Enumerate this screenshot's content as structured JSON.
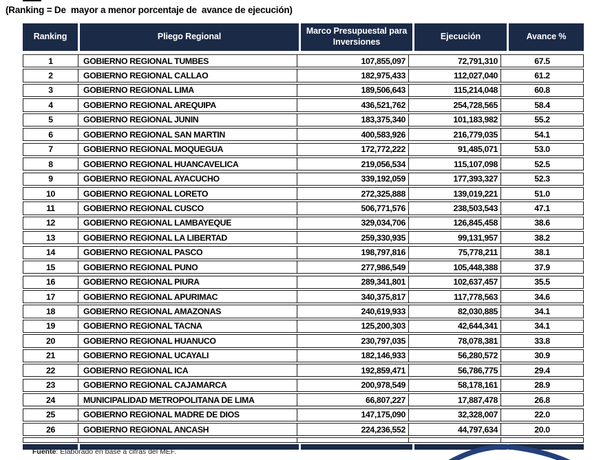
{
  "title": "(Ranking = De  mayor a menor porcentaje de  avance de ejecución)",
  "table": {
    "columns": [
      "Ranking",
      "Pliego Regional",
      "Marco Presupuestal para Inversiones",
      "Ejecución",
      "Avance %"
    ],
    "rows": [
      {
        "ranking": "1",
        "pliego": "GOBIERNO REGIONAL TUMBES",
        "marco": "107,855,097",
        "ejecucion": "72,791,310",
        "avance": "67.5"
      },
      {
        "ranking": "2",
        "pliego": "GOBIERNO REGIONAL CALLAO",
        "marco": "182,975,433",
        "ejecucion": "112,027,040",
        "avance": "61.2"
      },
      {
        "ranking": "3",
        "pliego": "GOBIERNO REGIONAL LIMA",
        "marco": "189,506,643",
        "ejecucion": "115,214,048",
        "avance": "60.8"
      },
      {
        "ranking": "4",
        "pliego": "GOBIERNO REGIONAL AREQUIPA",
        "marco": "436,521,762",
        "ejecucion": "254,728,565",
        "avance": "58.4"
      },
      {
        "ranking": "5",
        "pliego": "GOBIERNO REGIONAL JUNIN",
        "marco": "183,375,340",
        "ejecucion": "101,183,982",
        "avance": "55.2"
      },
      {
        "ranking": "6",
        "pliego": "GOBIERNO REGIONAL SAN MARTIN",
        "marco": "400,583,926",
        "ejecucion": "216,779,035",
        "avance": "54.1"
      },
      {
        "ranking": "7",
        "pliego": "GOBIERNO REGIONAL MOQUEGUA",
        "marco": "172,772,222",
        "ejecucion": "91,485,071",
        "avance": "53.0"
      },
      {
        "ranking": "8",
        "pliego": "GOBIERNO REGIONAL HUANCAVELICA",
        "marco": "219,056,534",
        "ejecucion": "115,107,098",
        "avance": "52.5"
      },
      {
        "ranking": "9",
        "pliego": "GOBIERNO REGIONAL AYACUCHO",
        "marco": "339,192,059",
        "ejecucion": "177,393,327",
        "avance": "52.3"
      },
      {
        "ranking": "10",
        "pliego": "GOBIERNO REGIONAL LORETO",
        "marco": "272,325,888",
        "ejecucion": "139,019,221",
        "avance": "51.0"
      },
      {
        "ranking": "11",
        "pliego": "GOBIERNO REGIONAL CUSCO",
        "marco": "506,771,576",
        "ejecucion": "238,503,543",
        "avance": "47.1"
      },
      {
        "ranking": "12",
        "pliego": "GOBIERNO REGIONAL LAMBAYEQUE",
        "marco": "329,034,706",
        "ejecucion": "126,845,458",
        "avance": "38.6"
      },
      {
        "ranking": "13",
        "pliego": "GOBIERNO REGIONAL LA LIBERTAD",
        "marco": "259,330,935",
        "ejecucion": "99,131,957",
        "avance": "38.2"
      },
      {
        "ranking": "14",
        "pliego": "GOBIERNO REGIONAL PASCO",
        "marco": "198,797,816",
        "ejecucion": "75,778,211",
        "avance": "38.1"
      },
      {
        "ranking": "15",
        "pliego": "GOBIERNO REGIONAL PUNO",
        "marco": "277,986,549",
        "ejecucion": "105,448,388",
        "avance": "37.9"
      },
      {
        "ranking": "16",
        "pliego": "GOBIERNO REGIONAL PIURA",
        "marco": "289,341,801",
        "ejecucion": "102,637,457",
        "avance": "35.5"
      },
      {
        "ranking": "17",
        "pliego": "GOBIERNO REGIONAL APURIMAC",
        "marco": "340,375,817",
        "ejecucion": "117,778,563",
        "avance": "34.6"
      },
      {
        "ranking": "18",
        "pliego": "GOBIERNO REGIONAL AMAZONAS",
        "marco": "240,619,933",
        "ejecucion": "82,030,885",
        "avance": "34.1"
      },
      {
        "ranking": "19",
        "pliego": "GOBIERNO REGIONAL TACNA",
        "marco": "125,200,303",
        "ejecucion": "42,644,341",
        "avance": "34.1"
      },
      {
        "ranking": "20",
        "pliego": "GOBIERNO REGIONAL HUANUCO",
        "marco": "230,797,035",
        "ejecucion": "78,078,381",
        "avance": "33.8"
      },
      {
        "ranking": "21",
        "pliego": "GOBIERNO REGIONAL UCAYALI",
        "marco": "182,146,933",
        "ejecucion": "56,280,572",
        "avance": "30.9"
      },
      {
        "ranking": "22",
        "pliego": "GOBIERNO REGIONAL ICA",
        "marco": "192,859,471",
        "ejecucion": "56,786,775",
        "avance": "29.4"
      },
      {
        "ranking": "23",
        "pliego": "GOBIERNO REGIONAL CAJAMARCA",
        "marco": "200,978,549",
        "ejecucion": "58,178,161",
        "avance": "28.9"
      },
      {
        "ranking": "24",
        "pliego": "MUNICIPALIDAD METROPOLITANA DE LIMA",
        "marco": "66,807,227",
        "ejecucion": "17,887,478",
        "avance": "26.8"
      },
      {
        "ranking": "25",
        "pliego": "GOBIERNO REGIONAL MADRE DE DIOS",
        "marco": "147,175,090",
        "ejecucion": "32,328,007",
        "avance": "22.0"
      },
      {
        "ranking": "26",
        "pliego": "GOBIERNO REGIONAL ANCASH",
        "marco": "224,236,552",
        "ejecucion": "44,797,634",
        "avance": "20.0"
      }
    ]
  },
  "source_note": {
    "label": "Fuente",
    "text": ": Elaborado en base a cifras del MEF."
  },
  "colors": {
    "header_bg": "#1b2a47",
    "row_border": "#1f1f1f",
    "logo_blue": "#24407a",
    "text": "#000000"
  }
}
